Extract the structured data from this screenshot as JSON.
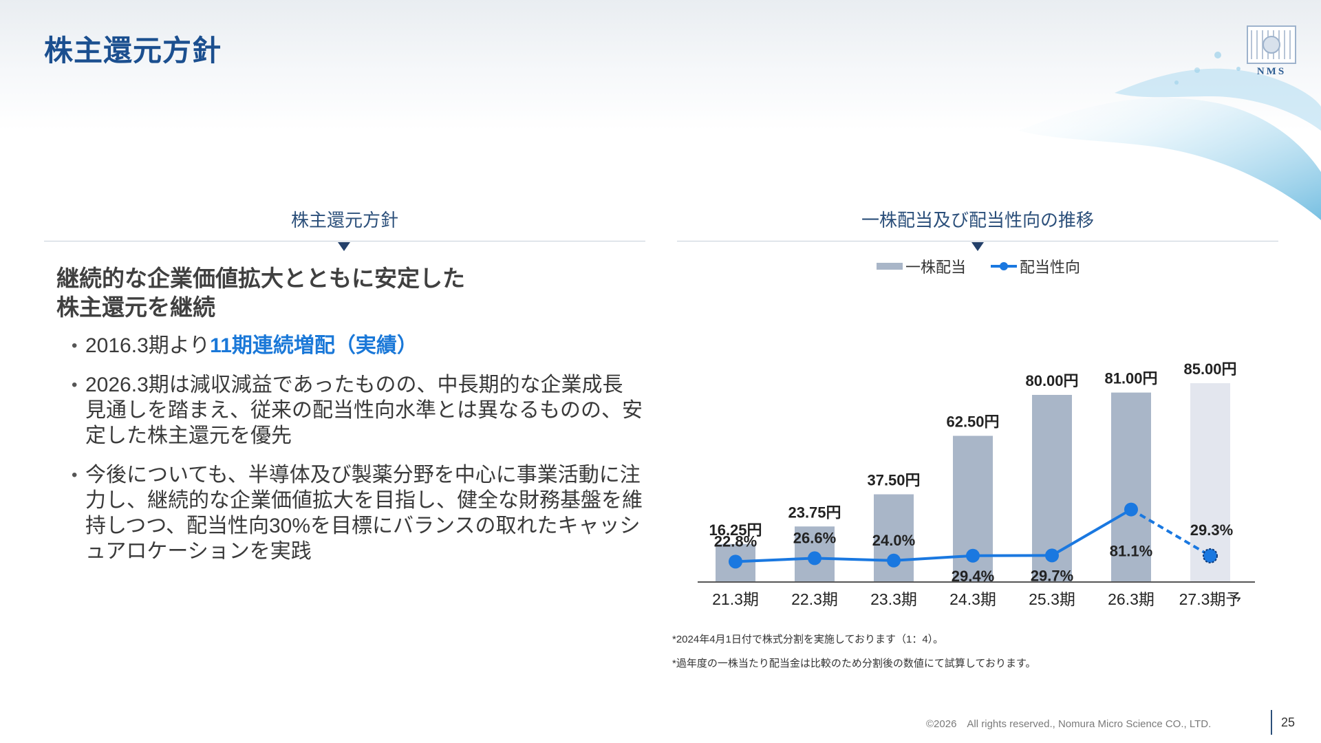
{
  "page": {
    "title": "株主還元方針",
    "logo_text": "NMS",
    "page_number": "25",
    "copyright": "©2026　All rights reserved., Nomura Micro Science CO., LTD."
  },
  "left": {
    "heading": "株主還元方針",
    "lead_line1": "継続的な企業価値拡大とともに安定した",
    "lead_line2": "株主還元を継続",
    "bullet1_prefix": "2016.3期より",
    "bullet1_highlight": "11期連続増配（実績）",
    "bullet2": "2026.3期は減収減益であったものの、中長期的な企業成長見通しを踏まえ、従来の配当性向水準とは異なるものの、安定した株主還元を優先",
    "bullet3": "今後についても、半導体及び製薬分野を中心に事業活動に注力し、継続的な企業価値拡大を目指し、健全な財務基盤を維持しつつ、配当性向30%を目標にバランスの取れたキャッシュアロケーションを実践"
  },
  "right": {
    "heading": "一株配当及び配当性向の推移"
  },
  "footnotes": {
    "note1": "*2024年4月1日付で株式分割を実施しております（1：4）。",
    "note2": "*過年度の一株当たり配当金は比較のため分割後の数値にて試算しております。"
  },
  "chart_data": {
    "type": "bar",
    "categories": [
      "21.3期",
      "22.3期",
      "23.3期",
      "24.3期",
      "25.3期",
      "26.3期",
      "27.3期予"
    ],
    "series": [
      {
        "name": "一株配当",
        "type": "bar",
        "values": [
          16.25,
          23.75,
          37.5,
          62.5,
          80.0,
          81.0,
          85.0
        ],
        "labels": [
          "16.25円",
          "23.75円",
          "37.50円",
          "62.50円",
          "80.00円",
          "81.00円",
          "85.00円"
        ],
        "color": "#a9b6c8",
        "forecast_color": "#e3e6ee"
      },
      {
        "name": "配当性向",
        "type": "line",
        "values": [
          22.8,
          26.6,
          24.0,
          29.4,
          29.7,
          81.1,
          29.3
        ],
        "labels": [
          "22.8%",
          "26.6%",
          "24.0%",
          "29.4%",
          "29.7%",
          "81.1%",
          "29.3%"
        ],
        "color": "#1a78e0",
        "forecast_style": "dashed"
      }
    ],
    "forecast_index": 6,
    "legend_position": "top-center",
    "grid": false
  }
}
